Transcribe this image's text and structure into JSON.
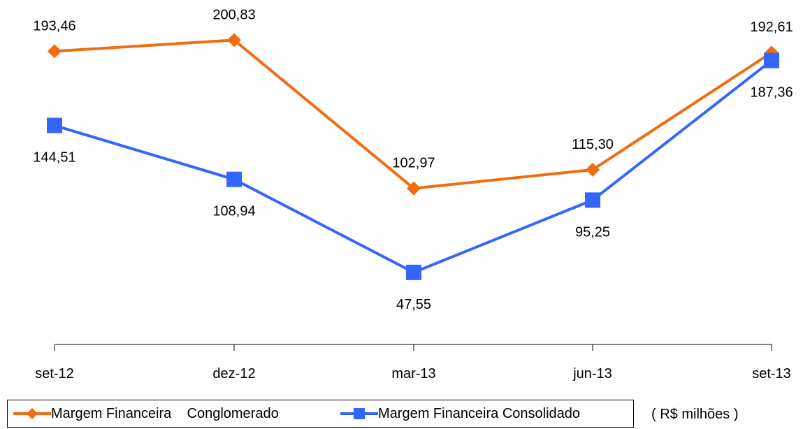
{
  "chart_data": {
    "type": "line",
    "categories": [
      "set-12",
      "dez-12",
      "mar-13",
      "jun-13",
      "set-13"
    ],
    "series": [
      {
        "name": "Margem Financeira    Conglomerado",
        "values": [
          193.46,
          200.83,
          102.97,
          115.3,
          192.61
        ],
        "labels": [
          "193,46",
          "200,83",
          "102,97",
          "115,30",
          "192,61"
        ],
        "color": "#F26B0F",
        "marker": "diamond"
      },
      {
        "name": "Margem Financeira Consolidado",
        "values": [
          144.51,
          108.94,
          47.55,
          95.25,
          187.36
        ],
        "labels": [
          "144,51",
          "108,94",
          "47,55",
          "95,25",
          "187,36"
        ],
        "color": "#3366FF",
        "marker": "square"
      }
    ],
    "ylim": [
      0,
      207
    ],
    "grid": false,
    "legend_position": "bottom",
    "unit_note": "( R$ milhões )"
  }
}
